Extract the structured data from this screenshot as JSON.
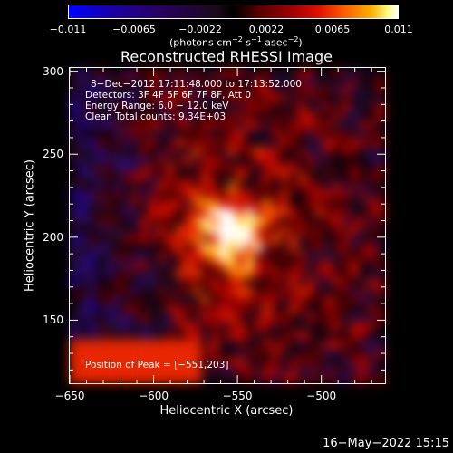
{
  "colorbar": {
    "ticks": [
      "−0.011",
      "−0.0065",
      "−0.0022",
      "0.0022",
      "0.0065",
      "0.011"
    ],
    "units_prefix": "(photons cm",
    "units_exp1": "−2",
    "units_mid": " s",
    "units_exp2": "−1",
    "units_mid2": " asec",
    "units_exp3": "−2",
    "units_suffix": ")"
  },
  "info": {
    "time": "8−Dec−2012 17:11:48.000 to 17:13:52.000",
    "detectors": "Detectors: 3F 4F 5F 6F 7F 8F, Att 0",
    "energy": "Energy Range: 6.0 − 12.0 keV",
    "clean": "Clean     Total counts: 9.34E+03",
    "peak": "Position of Peak = [−551,203]"
  },
  "footer": {
    "timestamp": "16−May−2022 15:15"
  },
  "chart_data": {
    "type": "heatmap",
    "title": "Reconstructed RHESSI Image",
    "xlabel": "Heliocentric X (arcsec)",
    "ylabel": "Heliocentric Y (arcsec)",
    "xlim": [
      -650,
      -462
    ],
    "ylim": [
      112,
      302
    ],
    "x_ticks": [
      "−650",
      "−600",
      "−550",
      "−500"
    ],
    "x_tick_values": [
      -650,
      -600,
      -550,
      -500
    ],
    "y_ticks": [
      "150",
      "200",
      "250",
      "300"
    ],
    "y_tick_values": [
      150,
      200,
      250,
      300
    ],
    "colorbar_range": [
      -0.011,
      0.011
    ],
    "peak": {
      "x": -551,
      "y": 203,
      "value": 0.011
    }
  }
}
